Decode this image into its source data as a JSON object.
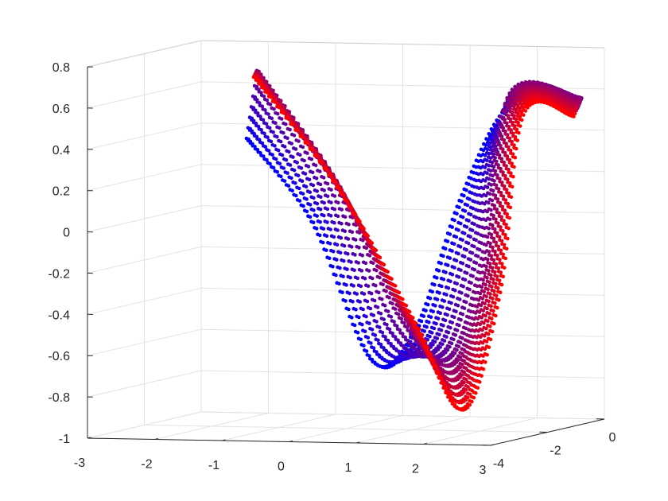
{
  "chart_data": {
    "type": "scatter",
    "view": "3d",
    "title": "",
    "xlabel": "",
    "ylabel": "",
    "zlabel": "",
    "xlim": [
      -3,
      3
    ],
    "ylim": [
      -4,
      0
    ],
    "zlim": [
      -1,
      0.8
    ],
    "grid": true,
    "x_ticks": [
      "-3",
      "-2",
      "-1",
      "0",
      "1",
      "2",
      "3"
    ],
    "y_ticks": [
      "-4",
      "-2",
      "0"
    ],
    "z_ticks": [
      "-1",
      "-0.8",
      "-0.6",
      "-0.4",
      "-0.2",
      "0",
      "0.2",
      "0.4",
      "0.6",
      "0.8"
    ],
    "color_start": "#0000ff",
    "color_end": "#ff0000",
    "strand_count": 14,
    "points_per_strand": 120,
    "strands": [
      {
        "param": 0.0,
        "points": [
          [
            -2.2,
            -0.3,
            0.34
          ],
          [
            -1.2,
            -0.4,
            -0.05
          ],
          [
            -0.25,
            -0.5,
            -0.72
          ],
          [
            0.45,
            -0.6,
            -0.55
          ],
          [
            1.15,
            -0.7,
            0.08
          ],
          [
            1.95,
            -0.8,
            0.55
          ],
          [
            2.95,
            -0.9,
            0.54
          ]
        ]
      },
      {
        "param": 0.5,
        "points": [
          [
            -1.45,
            -1.7,
            0.72
          ],
          [
            -0.35,
            -1.6,
            0.2
          ],
          [
            0.6,
            -1.5,
            -0.45
          ],
          [
            1.3,
            -1.4,
            -0.68
          ],
          [
            1.75,
            -1.3,
            -0.2
          ],
          [
            2.1,
            -1.2,
            0.62
          ],
          [
            3.1,
            -1.1,
            0.6
          ]
        ]
      },
      {
        "param": 1.0,
        "points": [
          [
            -0.95,
            -3.0,
            0.73
          ],
          [
            0.2,
            -2.8,
            0.2
          ],
          [
            1.25,
            -2.6,
            -0.45
          ],
          [
            1.9,
            -2.4,
            -0.88
          ],
          [
            2.4,
            -2.3,
            -0.3
          ],
          [
            2.7,
            -2.2,
            0.55
          ],
          [
            3.4,
            -2.1,
            0.54
          ]
        ]
      }
    ]
  }
}
